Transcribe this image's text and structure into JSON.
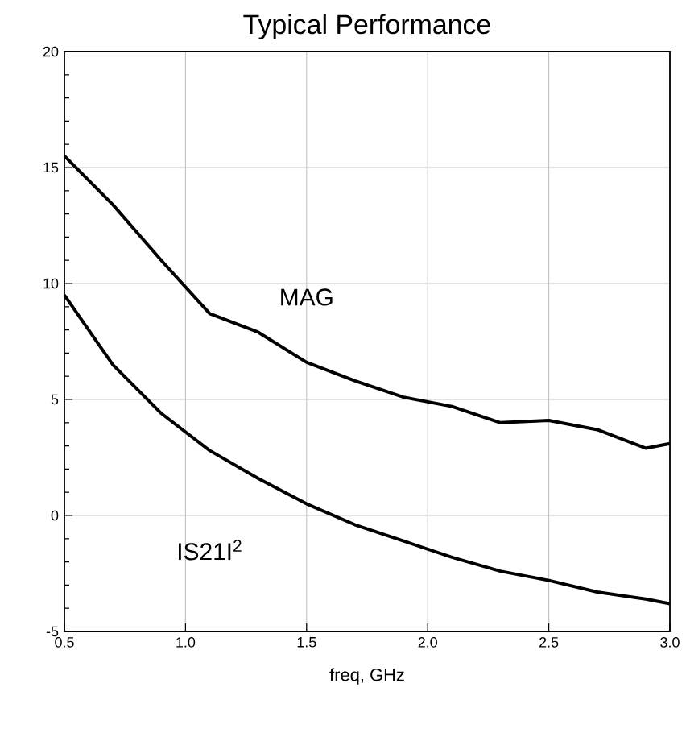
{
  "chart_data": {
    "type": "line",
    "title": "Typical Performance",
    "xlabel": "freq, GHz",
    "x": [
      0.5,
      0.7,
      0.9,
      1.1,
      1.3,
      1.5,
      1.7,
      1.9,
      2.1,
      2.3,
      2.5,
      2.7,
      2.9,
      3.0
    ],
    "series": [
      {
        "name": "MAG",
        "color": "#000000",
        "values": [
          15.5,
          13.4,
          11.0,
          8.7,
          7.9,
          6.6,
          5.8,
          5.1,
          4.7,
          4.0,
          4.1,
          3.7,
          2.9,
          3.1
        ]
      },
      {
        "name": "IS21I$^{2}$",
        "color": "#000000",
        "values": [
          9.5,
          6.5,
          4.4,
          2.8,
          1.6,
          0.5,
          -0.4,
          -1.1,
          -1.8,
          -2.4,
          -2.8,
          -3.3,
          -3.6,
          -3.8
        ]
      }
    ],
    "xlim": [
      0.5,
      3.0
    ],
    "xticks": [
      {
        "value": 0.5,
        "label": "0.5"
      },
      {
        "value": 1.0,
        "label": "1.0"
      },
      {
        "value": 1.5,
        "label": "1.5"
      },
      {
        "value": 2.0,
        "label": "2.0"
      },
      {
        "value": 2.5,
        "label": "2.5"
      },
      {
        "value": 3.0,
        "label": "3.0"
      }
    ],
    "ylim": [
      -5,
      20
    ],
    "yticks": [
      {
        "value": -5,
        "label": "-5"
      },
      {
        "value": 0,
        "label": "0"
      },
      {
        "value": 5,
        "label": "5"
      },
      {
        "value": 10,
        "label": "10"
      },
      {
        "value": 15,
        "label": "15"
      },
      {
        "value": 20,
        "label": "20"
      }
    ],
    "grid": true,
    "marker": "none",
    "line_style": "solid"
  }
}
